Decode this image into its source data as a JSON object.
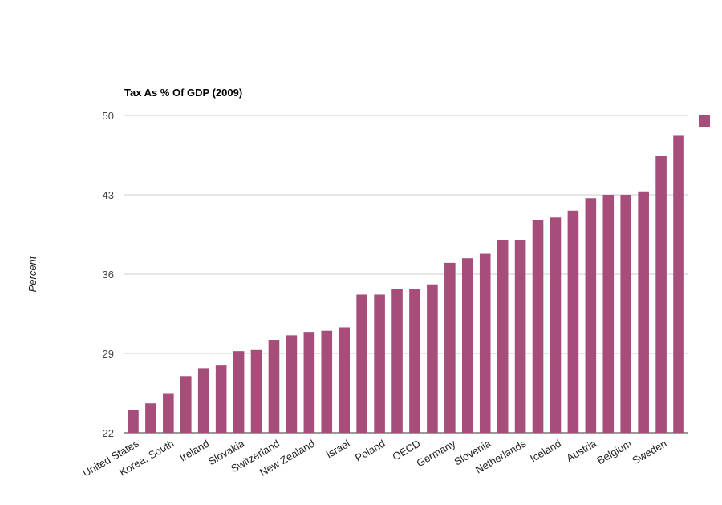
{
  "chart_data": {
    "type": "bar",
    "title": "Tax As % Of GDP (2009)",
    "ylabel": "Percent",
    "ylim": [
      22,
      50
    ],
    "yticks": [
      22,
      29,
      36,
      43,
      50
    ],
    "grid": true,
    "legend": "right",
    "bar_color": "#a64d79",
    "categories": [
      "United States",
      "",
      "Korea, South",
      "",
      "Ireland",
      "",
      "Slovakia",
      "",
      "Switzerland",
      "",
      "New Zealand",
      "",
      "Israel",
      "",
      "Poland",
      "",
      "OECD",
      "",
      "Germany",
      "",
      "Slovenia",
      "",
      "Netherlands",
      "",
      "Iceland",
      "",
      "Austria",
      "",
      "Belgium",
      "",
      "Sweden",
      ""
    ],
    "values": [
      24.0,
      24.6,
      25.5,
      27.0,
      27.7,
      28.0,
      29.2,
      29.3,
      30.2,
      30.6,
      30.9,
      31.0,
      31.3,
      34.2,
      34.2,
      34.7,
      34.7,
      35.1,
      37.0,
      37.4,
      37.8,
      39.0,
      39.0,
      40.8,
      41.0,
      41.6,
      42.7,
      43.0,
      43.0,
      43.3,
      46.4,
      48.2
    ]
  }
}
